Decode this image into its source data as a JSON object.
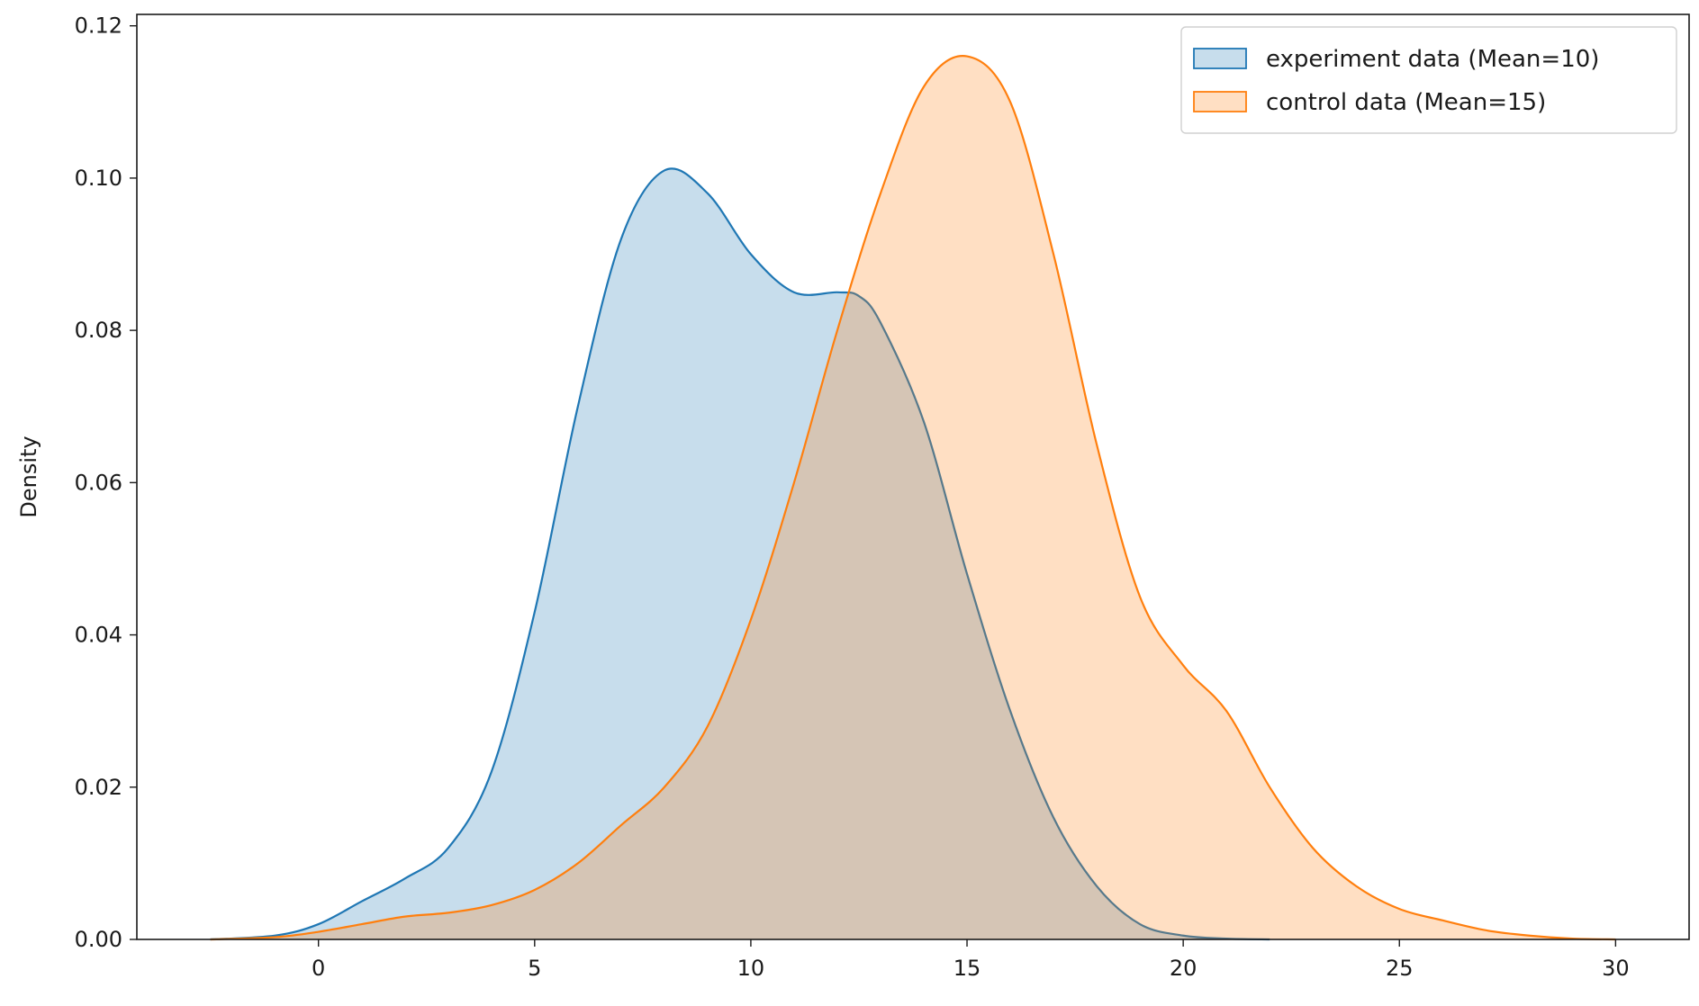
{
  "chart_data": {
    "type": "area",
    "xlabel": "",
    "ylabel": "Density",
    "xlim": [
      -4.2,
      31.7
    ],
    "ylim": [
      0,
      0.1215
    ],
    "xticks": [
      0,
      5,
      10,
      15,
      20,
      25,
      30
    ],
    "yticks": [
      0.0,
      0.02,
      0.04,
      0.06,
      0.08,
      0.1,
      0.12
    ],
    "ytick_labels": [
      "0.00",
      "0.02",
      "0.04",
      "0.06",
      "0.08",
      "0.10",
      "0.12"
    ],
    "legend": {
      "placement": "top-right"
    },
    "grid": false,
    "series": [
      {
        "name": "experiment data (Mean=10)",
        "color": "#1f77b4",
        "fill_opacity": 0.25,
        "x": [
          -2.5,
          -1,
          0,
          1,
          2,
          3,
          4,
          5,
          6,
          7,
          8,
          9,
          10,
          11,
          12,
          12.5,
          13,
          14,
          15,
          16,
          17,
          18,
          19,
          20,
          21,
          22
        ],
        "y": [
          0.0,
          0.0005,
          0.002,
          0.005,
          0.008,
          0.012,
          0.022,
          0.043,
          0.07,
          0.092,
          0.101,
          0.098,
          0.09,
          0.085,
          0.085,
          0.0845,
          0.081,
          0.068,
          0.048,
          0.03,
          0.016,
          0.007,
          0.002,
          0.0005,
          0.0001,
          0.0
        ]
      },
      {
        "name": "control data (Mean=15)",
        "color": "#ff7f0e",
        "fill_opacity": 0.25,
        "x": [
          -2.5,
          -1,
          0,
          1,
          2,
          3,
          4,
          5,
          6,
          7,
          8,
          9,
          10,
          11,
          12,
          13,
          14,
          15,
          16,
          17,
          18,
          19,
          20,
          21,
          22,
          23,
          24,
          25,
          26,
          27,
          28,
          29,
          30
        ],
        "y": [
          0.0,
          0.0003,
          0.001,
          0.002,
          0.003,
          0.0035,
          0.0045,
          0.0065,
          0.01,
          0.015,
          0.02,
          0.028,
          0.042,
          0.06,
          0.08,
          0.098,
          0.112,
          0.116,
          0.11,
          0.09,
          0.065,
          0.045,
          0.036,
          0.03,
          0.02,
          0.012,
          0.007,
          0.004,
          0.0025,
          0.0012,
          0.0005,
          0.0001,
          0.0
        ]
      }
    ]
  }
}
